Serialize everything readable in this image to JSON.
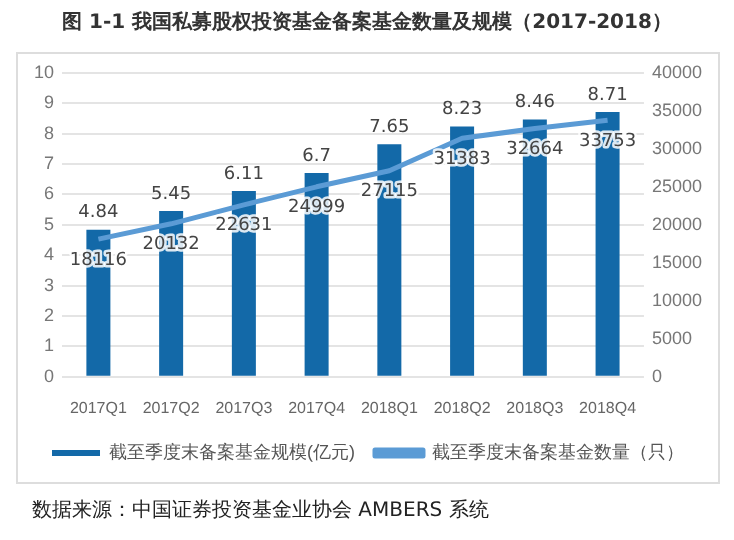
{
  "chart_data": {
    "type": "bar",
    "title": "图 1-1  我国私募股权投资基金备案基金数量及规模（2017-2018）",
    "categories": [
      "2017Q1",
      "2017Q2",
      "2017Q3",
      "2017Q4",
      "2018Q1",
      "2018Q2",
      "2018Q3",
      "2018Q4"
    ],
    "series": [
      {
        "name": "截至季度末备案基金规模(亿元)",
        "color": "#1369a8",
        "values": [
          4.84,
          5.45,
          6.11,
          6.7,
          7.65,
          8.23,
          8.46,
          8.71
        ]
      },
      {
        "name": "截至季度末备案基金数量（只）",
        "type": "line",
        "axis": "y2",
        "color": "#5b9bd5",
        "values": [
          18116,
          20132,
          22631,
          24999,
          27115,
          31383,
          32664,
          33753
        ]
      }
    ],
    "ylim": [
      0,
      10
    ],
    "yticks": [
      0,
      1,
      2,
      3,
      4,
      5,
      6,
      7,
      8,
      9,
      10
    ],
    "y2lim": [
      0,
      40000
    ],
    "y2ticks": [
      0,
      5000,
      10000,
      15000,
      20000,
      25000,
      30000,
      35000,
      40000
    ],
    "grid": "y",
    "legend": "bottom",
    "data_labels": true,
    "marker": "none",
    "annotations": [
      "数据来源：中国证券投资基金业协会 AMBERS 系统"
    ]
  }
}
